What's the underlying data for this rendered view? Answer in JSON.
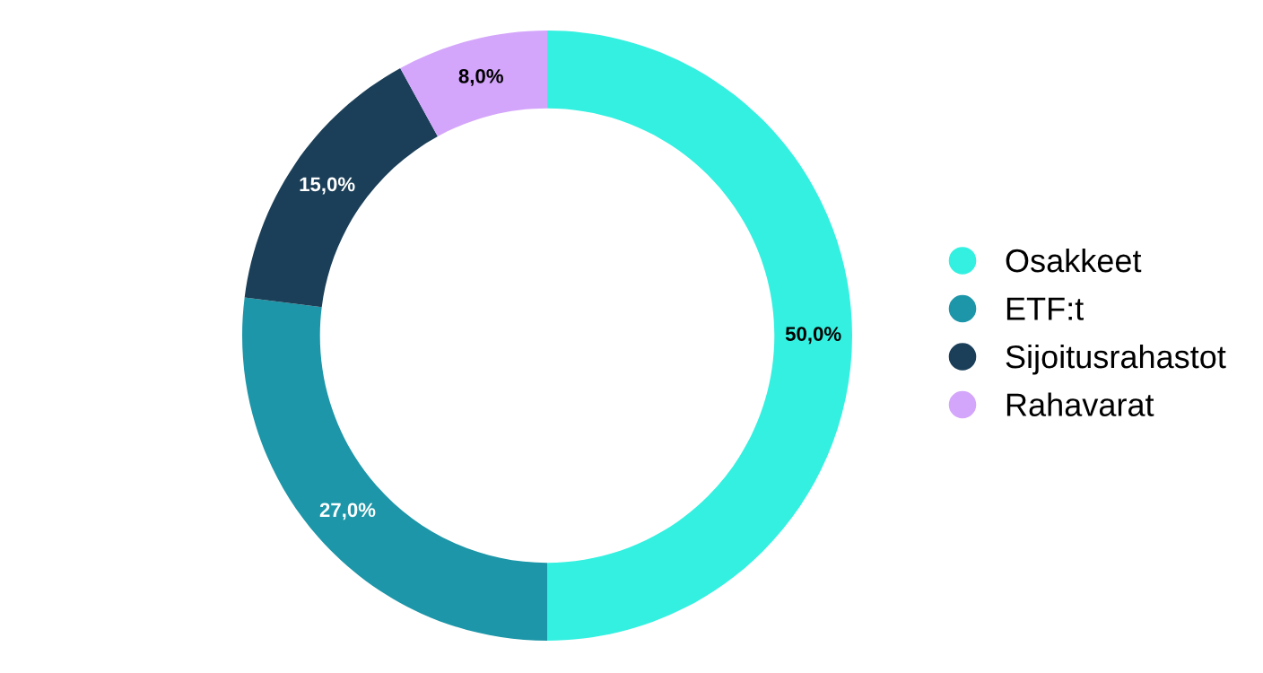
{
  "chart_data": {
    "type": "donut",
    "categories": [
      "Osakkeet",
      "ETF:t",
      "Sijoitusrahastot",
      "Rahavarat"
    ],
    "values": [
      50,
      27,
      15,
      8
    ],
    "colors": [
      "#33f0e0",
      "#1c96a8",
      "#1b3f58",
      "#d4a6fb"
    ],
    "value_labels": [
      "50,0%",
      "27,0%",
      "15,0%",
      "8,0%"
    ],
    "legend": "right"
  }
}
